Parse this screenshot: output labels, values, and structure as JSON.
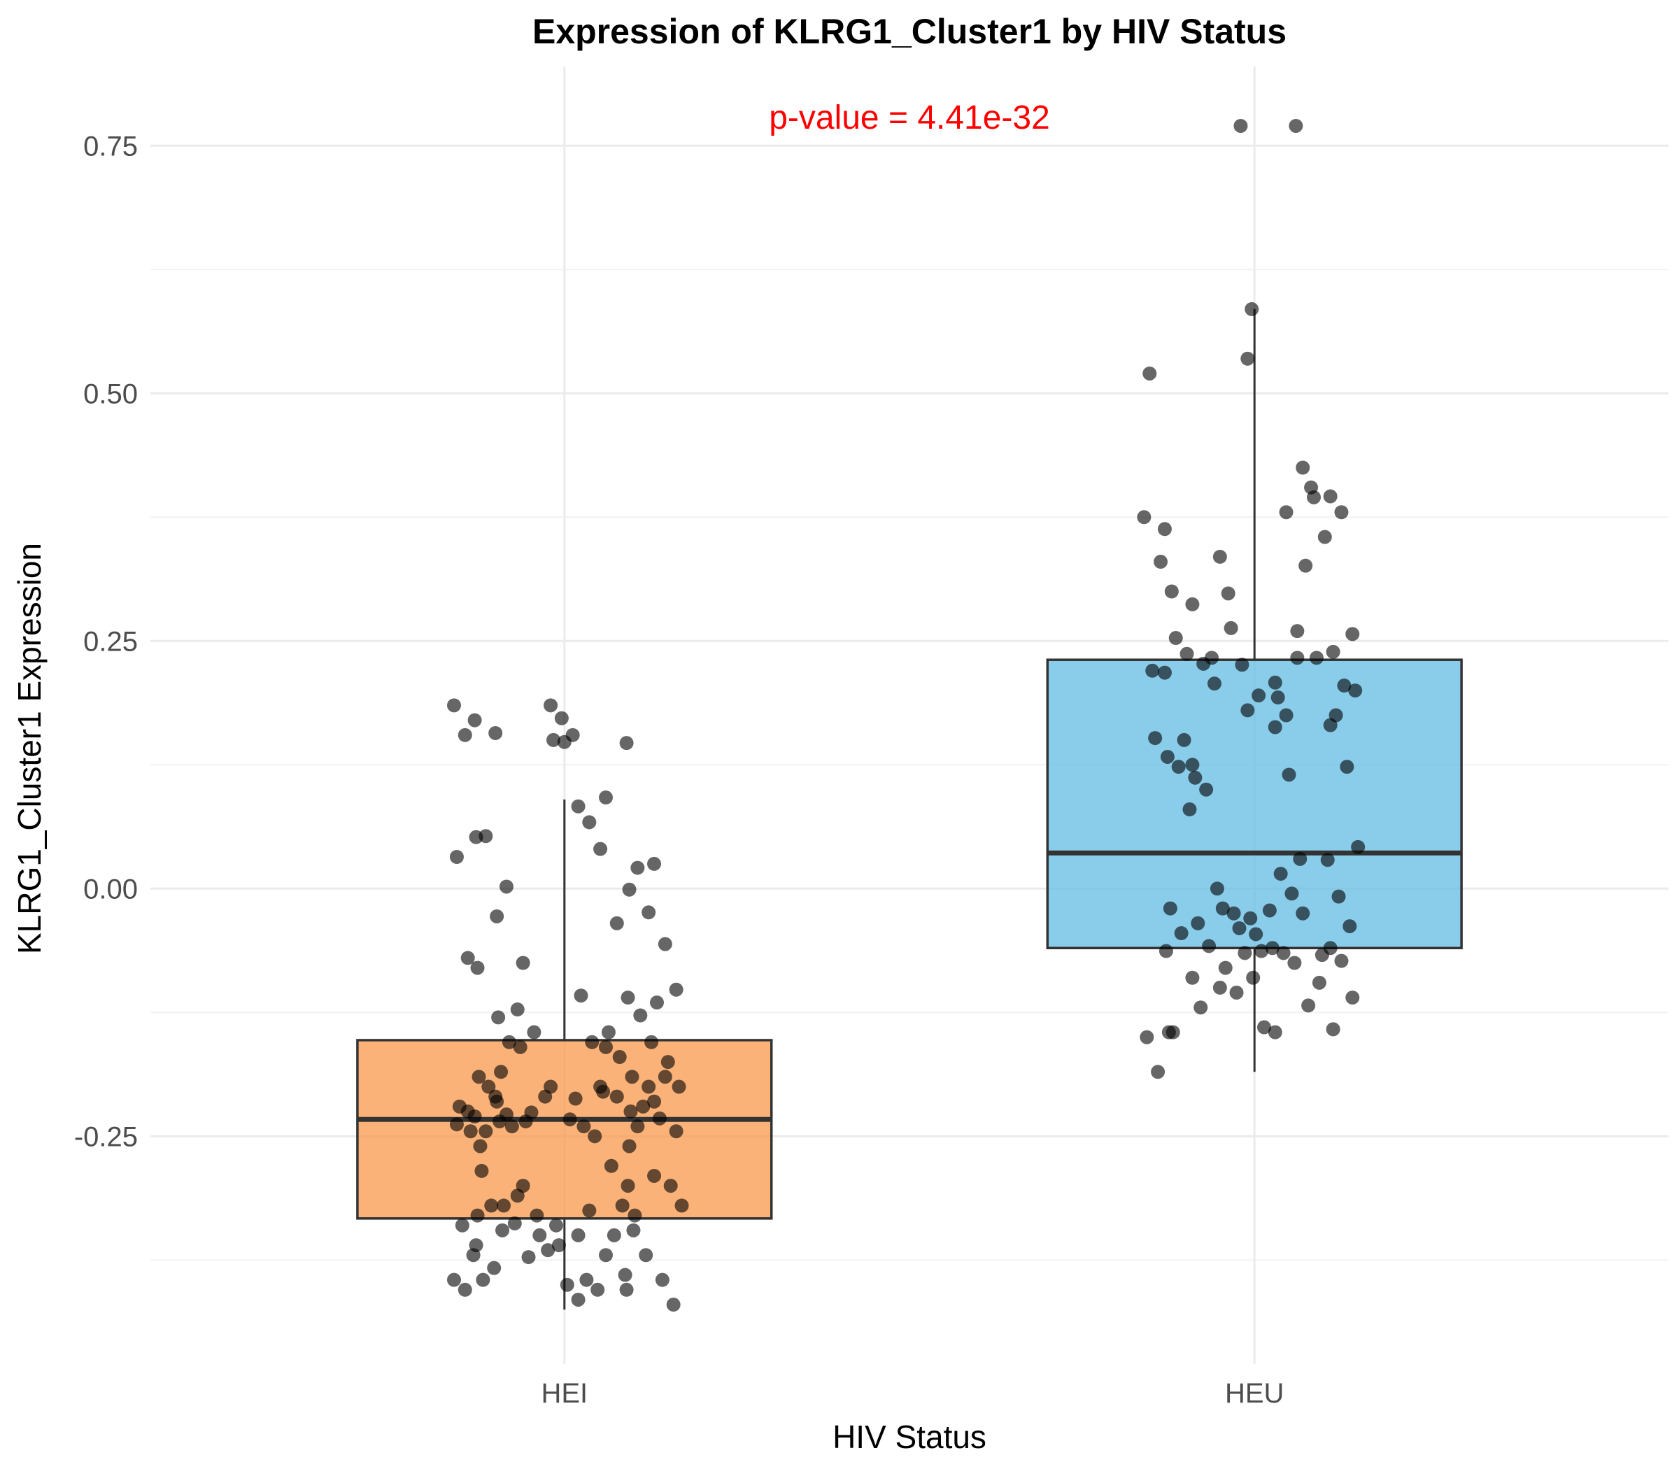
{
  "chart_data": {
    "type": "box",
    "title": "Expression of KLRG1_Cluster1 by HIV Status",
    "xlabel": "HIV Status",
    "ylabel": "KLRG1_Cluster1 Expression",
    "ylim": [
      -0.48,
      0.83
    ],
    "yticks": [
      -0.25,
      0.0,
      0.25,
      0.5,
      0.75
    ],
    "ytick_labels": [
      "-0.25",
      "0.00",
      "0.25",
      "0.50",
      "0.75"
    ],
    "grid": true,
    "annotation": {
      "text": "p-value = 4.41e-32",
      "color": "#ff0000",
      "x": 1.5,
      "y": 0.77
    },
    "categories": [
      "HEI",
      "HEU"
    ],
    "boxes": [
      {
        "name": "HEI",
        "fill": "#f9984b",
        "q1": -0.333,
        "median": -0.233,
        "q3": -0.153,
        "whisker_low": -0.425,
        "whisker_high": 0.09
      },
      {
        "name": "HEU",
        "fill": "#63bce4",
        "q1": -0.06,
        "median": 0.036,
        "q3": 0.231,
        "whisker_low": -0.185,
        "whisker_high": 0.585
      }
    ],
    "points": [
      {
        "group": "HEI",
        "x_offset": -0.14,
        "values": [
          0.185,
          0.155,
          0.052,
          0.032,
          -0.07,
          -0.19,
          -0.22,
          -0.245,
          -0.285,
          -0.34,
          -0.37,
          -0.395,
          -0.405,
          -0.36,
          -0.238,
          -0.225
        ]
      },
      {
        "group": "HEI",
        "x_offset": -0.11,
        "values": [
          0.17,
          0.053,
          -0.028,
          -0.08,
          -0.2,
          -0.235,
          -0.26,
          -0.32,
          -0.345,
          -0.395,
          -0.383,
          -0.23,
          -0.245,
          -0.215,
          -0.33
        ]
      },
      {
        "group": "HEI",
        "x_offset": -0.08,
        "values": [
          0.157,
          0.002,
          -0.122,
          -0.13,
          -0.155,
          -0.16,
          -0.185,
          -0.24,
          -0.3,
          -0.32,
          -0.338,
          -0.21,
          -0.228,
          -0.31
        ]
      },
      {
        "group": "HEI",
        "x_offset": -0.04,
        "values": [
          -0.075,
          -0.145,
          -0.21,
          -0.235,
          -0.33,
          -0.365,
          -0.372,
          -0.35,
          -0.2,
          -0.226
        ]
      },
      {
        "group": "HEI",
        "x_offset": 0.0,
        "values": [
          0.185,
          0.172,
          0.155,
          0.15,
          0.148,
          -0.212,
          -0.34,
          -0.4,
          -0.415,
          -0.36,
          -0.233
        ]
      },
      {
        "group": "HEI",
        "x_offset": 0.04,
        "values": [
          0.083,
          0.067,
          0.04,
          -0.108,
          -0.155,
          -0.205,
          -0.24,
          -0.25,
          -0.37,
          -0.395,
          -0.405,
          -0.35,
          -0.325,
          -0.2
        ]
      },
      {
        "group": "HEI",
        "x_offset": 0.08,
        "values": [
          0.092,
          -0.035,
          -0.11,
          -0.145,
          -0.17,
          -0.225,
          -0.28,
          -0.32,
          -0.345,
          -0.35,
          -0.39,
          -0.16,
          -0.21,
          -0.3
        ]
      },
      {
        "group": "HEI",
        "x_offset": 0.11,
        "values": [
          0.147,
          0.021,
          -0.024,
          -0.001,
          -0.128,
          -0.155,
          -0.19,
          -0.22,
          -0.29,
          -0.33,
          -0.37,
          -0.405,
          -0.24,
          -0.2,
          -0.26
        ]
      },
      {
        "group": "HEI",
        "x_offset": 0.15,
        "values": [
          0.025,
          -0.056,
          -0.102,
          -0.115,
          -0.175,
          -0.2,
          -0.232,
          -0.3,
          -0.32,
          -0.395,
          -0.42,
          -0.215,
          -0.19,
          -0.245
        ]
      },
      {
        "group": "HEU",
        "x_offset": -0.14,
        "values": [
          0.375,
          0.152,
          -0.063,
          -0.15,
          -0.185,
          -0.145,
          0.52,
          0.33,
          0.3,
          0.22
        ]
      },
      {
        "group": "HEU",
        "x_offset": -0.11,
        "values": [
          0.363,
          0.253,
          0.237,
          0.133,
          0.123,
          0.08,
          -0.02,
          -0.045,
          -0.09,
          -0.145,
          0.15,
          0.218
        ]
      },
      {
        "group": "HEU",
        "x_offset": -0.07,
        "values": [
          0.287,
          0.227,
          0.207,
          0.112,
          0.1,
          0.0,
          -0.035,
          -0.058,
          -0.1,
          -0.12,
          0.233,
          0.125
        ]
      },
      {
        "group": "HEU",
        "x_offset": -0.03,
        "values": [
          0.335,
          0.263,
          0.226,
          -0.02,
          -0.025,
          -0.065,
          -0.08,
          -0.105,
          0.535,
          0.298,
          -0.04
        ]
      },
      {
        "group": "HEU",
        "x_offset": 0.01,
        "values": [
          0.18,
          0.195,
          -0.022,
          -0.03,
          -0.063,
          -0.06,
          -0.09,
          -0.14,
          0.163,
          -0.046
        ]
      },
      {
        "group": "HEU",
        "x_offset": 0.05,
        "values": [
          0.208,
          0.175,
          0.233,
          0.193,
          0.115,
          0.03,
          0.015,
          -0.005,
          -0.025,
          -0.065,
          -0.075,
          -0.145,
          0.38,
          0.26
        ]
      },
      {
        "group": "HEU",
        "x_offset": 0.09,
        "values": [
          0.425,
          0.395,
          0.355,
          0.326,
          0.233,
          0.029,
          -0.118,
          -0.095,
          0.165,
          0.405,
          -0.067
        ]
      },
      {
        "group": "HEU",
        "x_offset": 0.13,
        "values": [
          0.396,
          0.38,
          0.257,
          0.239,
          0.205,
          0.2,
          0.175,
          0.123,
          0.042,
          -0.008,
          -0.038,
          -0.06,
          -0.073,
          -0.11,
          -0.142
        ]
      },
      {
        "group": "HEU",
        "x_offset": 0.08,
        "values": [
          0.77
        ]
      },
      {
        "group": "HEU",
        "x_offset": 0.0,
        "values": [
          0.77,
          0.585
        ]
      }
    ]
  }
}
